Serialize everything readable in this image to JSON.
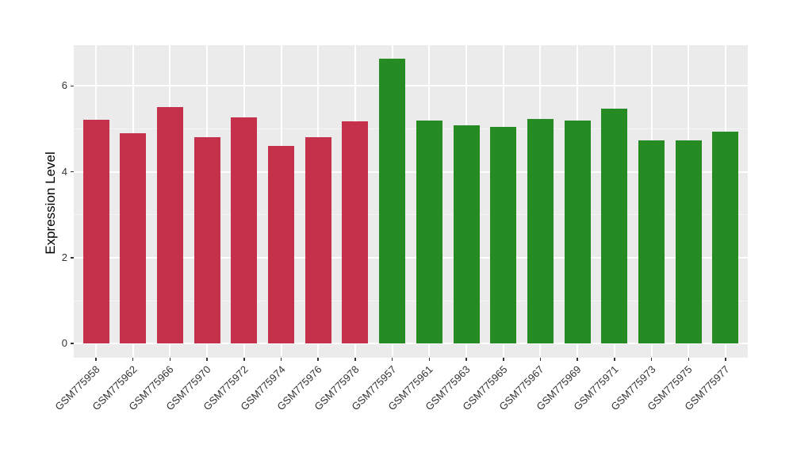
{
  "chart_data": {
    "type": "bar",
    "title": "",
    "xlabel": "",
    "ylabel": "Expression Level",
    "ylim": [
      -0.33,
      6.95
    ],
    "yticks": [
      0,
      2,
      4,
      6
    ],
    "yticks_minor": [
      1,
      3,
      5
    ],
    "grid": true,
    "legend": false,
    "x_tick_rotation_deg": 45,
    "panel_bg": "#EBEBEB",
    "grid_major_color": "#FFFFFF",
    "grid_minor_color": "#F5F5F5",
    "tick_color": "#333333",
    "categories": [
      "GSM775958",
      "GSM775962",
      "GSM775966",
      "GSM775970",
      "GSM775972",
      "GSM775974",
      "GSM775976",
      "GSM775978",
      "GSM775957",
      "GSM775961",
      "GSM775963",
      "GSM775965",
      "GSM775967",
      "GSM775969",
      "GSM775971",
      "GSM775973",
      "GSM775975",
      "GSM775977"
    ],
    "values": [
      5.21,
      4.9,
      5.5,
      4.8,
      5.26,
      4.61,
      4.8,
      5.18,
      6.63,
      5.2,
      5.09,
      5.05,
      5.23,
      5.2,
      5.47,
      4.74,
      4.74,
      4.94
    ],
    "bar_colors": [
      "#C5304B",
      "#C5304B",
      "#C5304B",
      "#C5304B",
      "#C5304B",
      "#C5304B",
      "#C5304B",
      "#C5304B",
      "#268B23",
      "#268B23",
      "#268B23",
      "#268B23",
      "#268B23",
      "#268B23",
      "#268B23",
      "#268B23",
      "#268B23",
      "#268B23"
    ],
    "palette": {
      "red_group": "#C5304B",
      "green_group": "#268B23"
    }
  }
}
